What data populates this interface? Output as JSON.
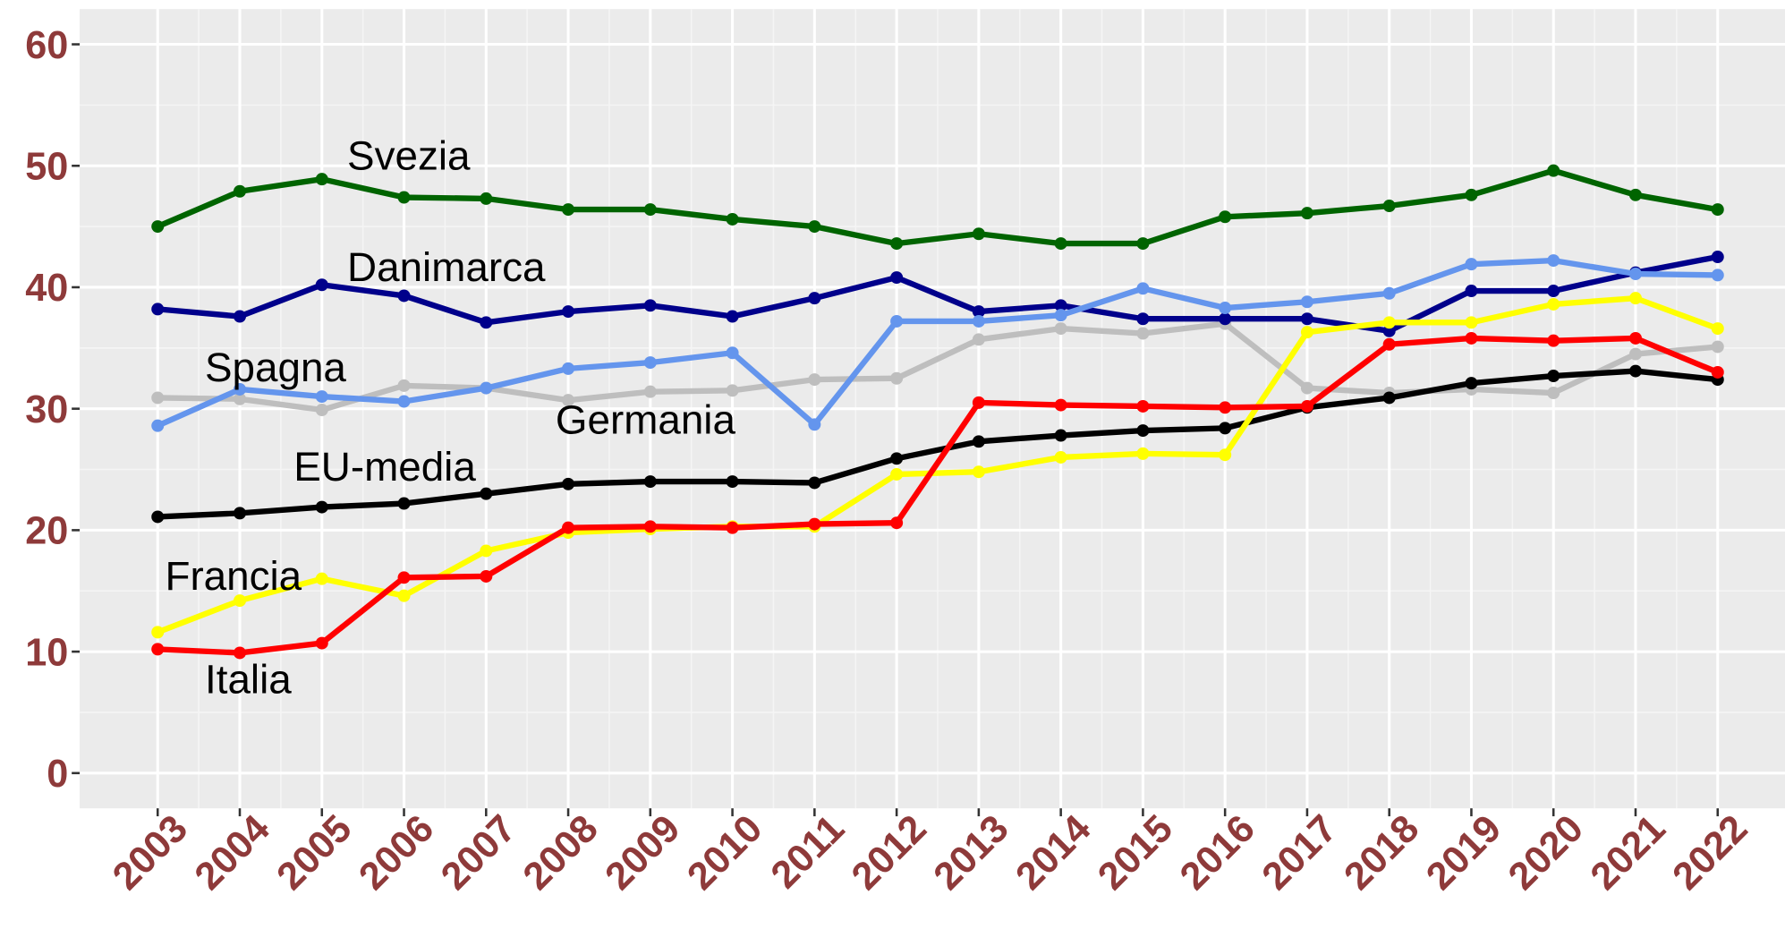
{
  "chart_data": {
    "type": "line",
    "x": [
      2003,
      2004,
      2005,
      2006,
      2007,
      2008,
      2009,
      2010,
      2011,
      2012,
      2013,
      2014,
      2015,
      2016,
      2017,
      2018,
      2019,
      2020,
      2021,
      2022
    ],
    "xlim": [
      2002.05,
      2022.82
    ],
    "xticks": [
      2003,
      2004,
      2005,
      2006,
      2007,
      2008,
      2009,
      2010,
      2011,
      2012,
      2013,
      2014,
      2015,
      2016,
      2017,
      2018,
      2019,
      2020,
      2021,
      2022
    ],
    "ylim": [
      -2.9,
      62.9
    ],
    "yticks": [
      0,
      10,
      20,
      30,
      40,
      50,
      60
    ],
    "grid": true,
    "series": [
      {
        "name": "Germania",
        "color": "#BEBEBE",
        "values": [
          30.9,
          30.8,
          29.9,
          31.9,
          31.7,
          30.7,
          31.4,
          31.5,
          32.4,
          32.5,
          35.7,
          36.6,
          36.2,
          37.0,
          31.7,
          31.3,
          31.6,
          31.3,
          34.5,
          35.1
        ]
      },
      {
        "name": "Svezia",
        "color": "#006400",
        "values": [
          45.0,
          47.9,
          48.9,
          47.4,
          47.3,
          46.4,
          46.4,
          45.6,
          45.0,
          43.6,
          44.4,
          43.6,
          43.6,
          45.8,
          46.1,
          46.7,
          47.6,
          49.6,
          47.6,
          46.4
        ]
      },
      {
        "name": "Danimarca",
        "color": "#00008B",
        "values": [
          38.2,
          37.6,
          40.2,
          39.3,
          37.1,
          38.0,
          38.5,
          37.6,
          39.1,
          40.8,
          38.0,
          38.5,
          37.4,
          37.4,
          37.4,
          36.4,
          39.7,
          39.7,
          41.2,
          42.5
        ]
      },
      {
        "name": "Spagna",
        "color": "#6495ED",
        "values": [
          28.6,
          31.6,
          31.0,
          30.6,
          31.7,
          33.3,
          33.8,
          34.6,
          28.7,
          37.2,
          37.2,
          37.7,
          39.9,
          38.3,
          38.8,
          39.5,
          41.9,
          42.2,
          41.1,
          41.0
        ]
      },
      {
        "name": "EU-media",
        "color": "#000000",
        "values": [
          21.1,
          21.4,
          21.9,
          22.2,
          23.0,
          23.8,
          24.0,
          24.0,
          23.9,
          25.9,
          27.3,
          27.8,
          28.2,
          28.4,
          30.1,
          30.9,
          32.1,
          32.7,
          33.1,
          32.4
        ]
      },
      {
        "name": "Francia",
        "color": "#FFFF00",
        "values": [
          11.6,
          14.2,
          16.0,
          14.6,
          18.3,
          19.8,
          20.1,
          20.3,
          20.3,
          24.6,
          24.8,
          26.0,
          26.3,
          26.2,
          36.3,
          37.1,
          37.1,
          38.6,
          39.1,
          36.6
        ]
      },
      {
        "name": "Italia",
        "color": "#FF0000",
        "values": [
          10.2,
          9.9,
          10.7,
          16.1,
          16.2,
          20.2,
          20.3,
          20.2,
          20.5,
          20.6,
          30.5,
          30.3,
          30.2,
          30.1,
          30.2,
          35.3,
          35.8,
          35.6,
          35.8,
          33.0
        ]
      }
    ]
  }
}
